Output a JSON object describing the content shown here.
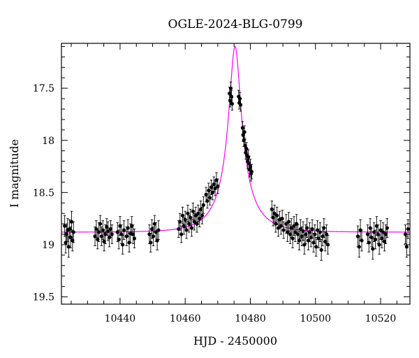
{
  "chart_data": {
    "type": "scatter",
    "title": "OGLE-2024-BLG-0799",
    "xlabel": "HJD - 2450000",
    "ylabel": "I magnitude",
    "xlim": [
      10422,
      10529
    ],
    "ylim": [
      19.57,
      17.07
    ],
    "y_inverted": true,
    "x_ticks": [
      10440,
      10460,
      10480,
      10500,
      10520
    ],
    "y_ticks": [
      17.5,
      18,
      18.5,
      19,
      19.5
    ],
    "x_tick_labels": [
      "10440",
      "10460",
      "10480",
      "10500",
      "10520"
    ],
    "y_tick_labels": [
      "17.5",
      "18",
      "18.5",
      "19",
      "19.5"
    ],
    "grid": false,
    "legend": false,
    "colors": {
      "data": "#000000",
      "model": "#ff00ff"
    },
    "model": {
      "name": "",
      "baseline_mag": 18.88,
      "peak_mag": 17.1,
      "t0": 10475.3,
      "tE": 9.5,
      "u0": 0.2
    },
    "observations": [
      {
        "x": 10423.0,
        "y": 18.82,
        "err": 0.1
      },
      {
        "x": 10423.3,
        "y": 18.98,
        "err": 0.1
      },
      {
        "x": 10423.6,
        "y": 18.9,
        "err": 0.1
      },
      {
        "x": 10423.9,
        "y": 18.86,
        "err": 0.11
      },
      {
        "x": 10424.2,
        "y": 19.02,
        "err": 0.1
      },
      {
        "x": 10424.5,
        "y": 18.85,
        "err": 0.09
      },
      {
        "x": 10424.8,
        "y": 18.93,
        "err": 0.1
      },
      {
        "x": 10425.1,
        "y": 18.78,
        "err": 0.1
      },
      {
        "x": 10425.4,
        "y": 18.96,
        "err": 0.1
      },
      {
        "x": 10425.7,
        "y": 18.88,
        "err": 0.1
      },
      {
        "x": 10432.3,
        "y": 18.92,
        "err": 0.09
      },
      {
        "x": 10432.7,
        "y": 18.85,
        "err": 0.08
      },
      {
        "x": 10433.1,
        "y": 18.95,
        "err": 0.09
      },
      {
        "x": 10433.5,
        "y": 18.88,
        "err": 0.09
      },
      {
        "x": 10433.9,
        "y": 18.8,
        "err": 0.08
      },
      {
        "x": 10434.3,
        "y": 18.92,
        "err": 0.09
      },
      {
        "x": 10434.7,
        "y": 18.86,
        "err": 0.09
      },
      {
        "x": 10435.1,
        "y": 18.97,
        "err": 0.09
      },
      {
        "x": 10435.5,
        "y": 18.9,
        "err": 0.09
      },
      {
        "x": 10435.9,
        "y": 18.83,
        "err": 0.08
      },
      {
        "x": 10436.3,
        "y": 18.87,
        "err": 0.09
      },
      {
        "x": 10436.7,
        "y": 18.93,
        "err": 0.09
      },
      {
        "x": 10437.1,
        "y": 18.85,
        "err": 0.08
      },
      {
        "x": 10437.5,
        "y": 18.9,
        "err": 0.09
      },
      {
        "x": 10439.2,
        "y": 18.88,
        "err": 0.09
      },
      {
        "x": 10439.6,
        "y": 18.95,
        "err": 0.09
      },
      {
        "x": 10440.0,
        "y": 18.82,
        "err": 0.09
      },
      {
        "x": 10440.4,
        "y": 18.9,
        "err": 0.09
      },
      {
        "x": 10440.8,
        "y": 19.0,
        "err": 0.09
      },
      {
        "x": 10441.2,
        "y": 18.86,
        "err": 0.09
      },
      {
        "x": 10442.0,
        "y": 18.92,
        "err": 0.09
      },
      {
        "x": 10442.4,
        "y": 18.84,
        "err": 0.08
      },
      {
        "x": 10442.8,
        "y": 18.98,
        "err": 0.09
      },
      {
        "x": 10443.2,
        "y": 18.89,
        "err": 0.09
      },
      {
        "x": 10443.6,
        "y": 18.82,
        "err": 0.09
      },
      {
        "x": 10444.0,
        "y": 18.9,
        "err": 0.09
      },
      {
        "x": 10444.4,
        "y": 18.94,
        "err": 0.09
      },
      {
        "x": 10449.0,
        "y": 18.9,
        "err": 0.09
      },
      {
        "x": 10449.4,
        "y": 18.98,
        "err": 0.09
      },
      {
        "x": 10449.8,
        "y": 18.85,
        "err": 0.09
      },
      {
        "x": 10450.2,
        "y": 18.92,
        "err": 0.09
      },
      {
        "x": 10450.6,
        "y": 18.8,
        "err": 0.08
      },
      {
        "x": 10451.0,
        "y": 18.88,
        "err": 0.09
      },
      {
        "x": 10451.4,
        "y": 18.96,
        "err": 0.09
      },
      {
        "x": 10451.8,
        "y": 18.86,
        "err": 0.09
      },
      {
        "x": 10458.0,
        "y": 18.85,
        "err": 0.08
      },
      {
        "x": 10458.4,
        "y": 18.78,
        "err": 0.08
      },
      {
        "x": 10458.8,
        "y": 18.9,
        "err": 0.08
      },
      {
        "x": 10459.2,
        "y": 18.72,
        "err": 0.08
      },
      {
        "x": 10459.6,
        "y": 18.82,
        "err": 0.08
      },
      {
        "x": 10460.0,
        "y": 18.76,
        "err": 0.08
      },
      {
        "x": 10460.4,
        "y": 18.86,
        "err": 0.08
      },
      {
        "x": 10460.8,
        "y": 18.7,
        "err": 0.08
      },
      {
        "x": 10461.2,
        "y": 18.8,
        "err": 0.08
      },
      {
        "x": 10461.6,
        "y": 18.74,
        "err": 0.08
      },
      {
        "x": 10462.0,
        "y": 18.84,
        "err": 0.08
      },
      {
        "x": 10462.4,
        "y": 18.68,
        "err": 0.08
      },
      {
        "x": 10462.8,
        "y": 18.78,
        "err": 0.08
      },
      {
        "x": 10463.2,
        "y": 18.72,
        "err": 0.08
      },
      {
        "x": 10463.6,
        "y": 18.8,
        "err": 0.08
      },
      {
        "x": 10464.0,
        "y": 18.7,
        "err": 0.08
      },
      {
        "x": 10464.4,
        "y": 18.75,
        "err": 0.08
      },
      {
        "x": 10464.8,
        "y": 18.66,
        "err": 0.08
      },
      {
        "x": 10465.2,
        "y": 18.72,
        "err": 0.08
      },
      {
        "x": 10465.6,
        "y": 18.62,
        "err": 0.08
      },
      {
        "x": 10466.4,
        "y": 18.52,
        "err": 0.07
      },
      {
        "x": 10466.8,
        "y": 18.58,
        "err": 0.07
      },
      {
        "x": 10467.2,
        "y": 18.48,
        "err": 0.07
      },
      {
        "x": 10467.6,
        "y": 18.55,
        "err": 0.07
      },
      {
        "x": 10468.0,
        "y": 18.45,
        "err": 0.07
      },
      {
        "x": 10468.4,
        "y": 18.5,
        "err": 0.07
      },
      {
        "x": 10468.8,
        "y": 18.42,
        "err": 0.07
      },
      {
        "x": 10469.2,
        "y": 18.46,
        "err": 0.07
      },
      {
        "x": 10469.6,
        "y": 18.38,
        "err": 0.07
      },
      {
        "x": 10470.0,
        "y": 18.44,
        "err": 0.07
      },
      {
        "x": 10473.6,
        "y": 17.55,
        "err": 0.06
      },
      {
        "x": 10473.8,
        "y": 17.62,
        "err": 0.06
      },
      {
        "x": 10474.0,
        "y": 17.5,
        "err": 0.06
      },
      {
        "x": 10474.2,
        "y": 17.58,
        "err": 0.06
      },
      {
        "x": 10474.4,
        "y": 17.65,
        "err": 0.06
      },
      {
        "x": 10476.4,
        "y": 17.58,
        "err": 0.06
      },
      {
        "x": 10476.6,
        "y": 17.64,
        "err": 0.06
      },
      {
        "x": 10476.8,
        "y": 17.6,
        "err": 0.06
      },
      {
        "x": 10477.0,
        "y": 17.66,
        "err": 0.06
      },
      {
        "x": 10477.6,
        "y": 17.88,
        "err": 0.06
      },
      {
        "x": 10477.8,
        "y": 17.95,
        "err": 0.06
      },
      {
        "x": 10478.0,
        "y": 18.0,
        "err": 0.06
      },
      {
        "x": 10478.2,
        "y": 17.92,
        "err": 0.06
      },
      {
        "x": 10478.4,
        "y": 18.05,
        "err": 0.06
      },
      {
        "x": 10478.6,
        "y": 18.12,
        "err": 0.06
      },
      {
        "x": 10478.8,
        "y": 18.08,
        "err": 0.06
      },
      {
        "x": 10479.0,
        "y": 18.15,
        "err": 0.06
      },
      {
        "x": 10479.2,
        "y": 18.2,
        "err": 0.07
      },
      {
        "x": 10479.4,
        "y": 18.16,
        "err": 0.07
      },
      {
        "x": 10479.6,
        "y": 18.22,
        "err": 0.07
      },
      {
        "x": 10479.8,
        "y": 18.28,
        "err": 0.07
      },
      {
        "x": 10480.0,
        "y": 18.25,
        "err": 0.07
      },
      {
        "x": 10480.2,
        "y": 18.32,
        "err": 0.07
      },
      {
        "x": 10480.4,
        "y": 18.3,
        "err": 0.07
      },
      {
        "x": 10486.6,
        "y": 18.66,
        "err": 0.08
      },
      {
        "x": 10487.0,
        "y": 18.74,
        "err": 0.08
      },
      {
        "x": 10487.4,
        "y": 18.7,
        "err": 0.08
      },
      {
        "x": 10487.8,
        "y": 18.8,
        "err": 0.08
      },
      {
        "x": 10488.2,
        "y": 18.72,
        "err": 0.08
      },
      {
        "x": 10488.6,
        "y": 18.84,
        "err": 0.08
      },
      {
        "x": 10489.0,
        "y": 18.76,
        "err": 0.08
      },
      {
        "x": 10489.4,
        "y": 18.82,
        "err": 0.08
      },
      {
        "x": 10489.8,
        "y": 18.75,
        "err": 0.08
      },
      {
        "x": 10490.2,
        "y": 18.86,
        "err": 0.08
      },
      {
        "x": 10491.0,
        "y": 18.8,
        "err": 0.09
      },
      {
        "x": 10491.4,
        "y": 18.88,
        "err": 0.09
      },
      {
        "x": 10491.8,
        "y": 18.78,
        "err": 0.09
      },
      {
        "x": 10492.2,
        "y": 18.9,
        "err": 0.09
      },
      {
        "x": 10492.6,
        "y": 18.84,
        "err": 0.09
      },
      {
        "x": 10493.0,
        "y": 18.94,
        "err": 0.09
      },
      {
        "x": 10493.4,
        "y": 18.82,
        "err": 0.09
      },
      {
        "x": 10493.8,
        "y": 18.88,
        "err": 0.09
      },
      {
        "x": 10494.2,
        "y": 18.8,
        "err": 0.09
      },
      {
        "x": 10494.6,
        "y": 18.9,
        "err": 0.09
      },
      {
        "x": 10495.0,
        "y": 18.96,
        "err": 0.09
      },
      {
        "x": 10495.4,
        "y": 18.85,
        "err": 0.09
      },
      {
        "x": 10495.8,
        "y": 18.92,
        "err": 0.09
      },
      {
        "x": 10496.2,
        "y": 18.87,
        "err": 0.09
      },
      {
        "x": 10496.6,
        "y": 19.0,
        "err": 0.09
      },
      {
        "x": 10497.0,
        "y": 18.9,
        "err": 0.09
      },
      {
        "x": 10497.4,
        "y": 18.84,
        "err": 0.09
      },
      {
        "x": 10497.8,
        "y": 18.96,
        "err": 0.09
      },
      {
        "x": 10498.2,
        "y": 18.88,
        "err": 0.09
      },
      {
        "x": 10498.6,
        "y": 18.93,
        "err": 0.09
      },
      {
        "x": 10499.0,
        "y": 18.85,
        "err": 0.09
      },
      {
        "x": 10499.4,
        "y": 18.98,
        "err": 0.09
      },
      {
        "x": 10499.8,
        "y": 18.9,
        "err": 0.09
      },
      {
        "x": 10500.2,
        "y": 19.02,
        "err": 0.09
      },
      {
        "x": 10500.6,
        "y": 18.86,
        "err": 0.09
      },
      {
        "x": 10501.0,
        "y": 18.94,
        "err": 0.09
      },
      {
        "x": 10501.4,
        "y": 18.88,
        "err": 0.09
      },
      {
        "x": 10501.8,
        "y": 19.05,
        "err": 0.1
      },
      {
        "x": 10502.2,
        "y": 18.92,
        "err": 0.09
      },
      {
        "x": 10502.6,
        "y": 18.84,
        "err": 0.09
      },
      {
        "x": 10503.0,
        "y": 18.97,
        "err": 0.09
      },
      {
        "x": 10503.4,
        "y": 18.9,
        "err": 0.09
      },
      {
        "x": 10503.8,
        "y": 19.0,
        "err": 0.09
      },
      {
        "x": 10513.0,
        "y": 18.92,
        "err": 0.1
      },
      {
        "x": 10513.4,
        "y": 19.02,
        "err": 0.1
      },
      {
        "x": 10513.8,
        "y": 18.86,
        "err": 0.1
      },
      {
        "x": 10514.2,
        "y": 18.96,
        "err": 0.1
      },
      {
        "x": 10516.0,
        "y": 18.9,
        "err": 0.09
      },
      {
        "x": 10516.4,
        "y": 18.98,
        "err": 0.09
      },
      {
        "x": 10516.8,
        "y": 18.84,
        "err": 0.09
      },
      {
        "x": 10517.2,
        "y": 18.93,
        "err": 0.09
      },
      {
        "x": 10517.6,
        "y": 19.04,
        "err": 0.1
      },
      {
        "x": 10518.0,
        "y": 18.88,
        "err": 0.09
      },
      {
        "x": 10518.4,
        "y": 18.95,
        "err": 0.09
      },
      {
        "x": 10518.8,
        "y": 18.82,
        "err": 0.09
      },
      {
        "x": 10519.2,
        "y": 18.9,
        "err": 0.09
      },
      {
        "x": 10519.6,
        "y": 19.0,
        "err": 0.09
      },
      {
        "x": 10520.0,
        "y": 18.86,
        "err": 0.09
      },
      {
        "x": 10520.4,
        "y": 18.94,
        "err": 0.09
      },
      {
        "x": 10520.8,
        "y": 18.88,
        "err": 0.09
      },
      {
        "x": 10521.2,
        "y": 18.97,
        "err": 0.09
      },
      {
        "x": 10521.6,
        "y": 18.9,
        "err": 0.09
      },
      {
        "x": 10522.0,
        "y": 18.84,
        "err": 0.09
      },
      {
        "x": 10527.6,
        "y": 18.9,
        "err": 0.09
      },
      {
        "x": 10528.0,
        "y": 19.02,
        "err": 0.1
      },
      {
        "x": 10528.4,
        "y": 18.85,
        "err": 0.09
      }
    ]
  }
}
